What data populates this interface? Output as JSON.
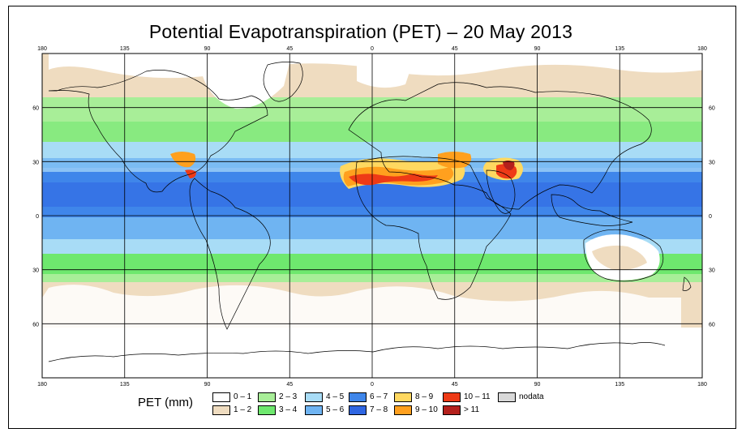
{
  "title": "Potential Evapotranspiration (PET) – 20 May 2013",
  "map": {
    "lon_ticks": [
      "180",
      "135",
      "90",
      "45",
      "0",
      "45",
      "90",
      "135",
      "180"
    ],
    "lat_ticks": [
      "60",
      "30",
      "0",
      "30",
      "60"
    ],
    "lon_range": [
      -180,
      180
    ],
    "lat_range": [
      -90,
      90
    ],
    "gridlines": true
  },
  "legend": {
    "title": "PET (mm)",
    "classes": [
      {
        "label": "0 – 1",
        "color": "#ffffff"
      },
      {
        "label": "1 – 2",
        "color": "#efdcc0"
      },
      {
        "label": "2 – 3",
        "color": "#a8ee98"
      },
      {
        "label": "3 – 4",
        "color": "#6ee86e"
      },
      {
        "label": "4 – 5",
        "color": "#a8dcf6"
      },
      {
        "label": "5 – 6",
        "color": "#6fb4f2"
      },
      {
        "label": "6 – 7",
        "color": "#3f86ea"
      },
      {
        "label": "7 – 8",
        "color": "#2f66e2"
      },
      {
        "label": "8 – 9",
        "color": "#ffd860"
      },
      {
        "label": "9 – 10",
        "color": "#ffa01e"
      },
      {
        "label": "10 – 11",
        "color": "#ee3a16"
      },
      {
        "label": "> 11",
        "color": "#b4201c"
      },
      {
        "label": "nodata",
        "color": "#d8d8d8"
      }
    ]
  }
}
